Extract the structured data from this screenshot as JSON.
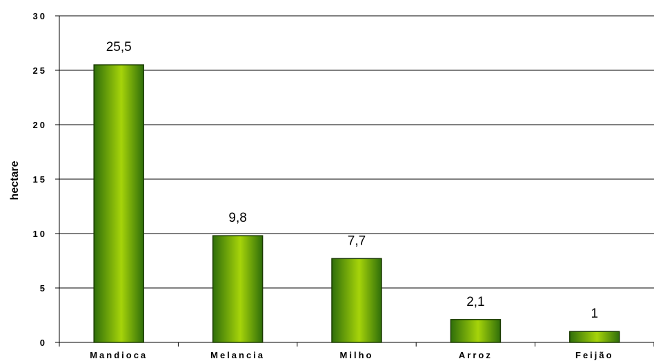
{
  "chart_data": {
    "type": "bar",
    "categories": [
      "Mandioca",
      "Melancia",
      "Milho",
      "Arroz",
      "Feijão"
    ],
    "values": [
      25.5,
      9.8,
      7.7,
      2.1,
      1
    ],
    "data_labels": [
      "25,5",
      "9,8",
      "7,7",
      "2,1",
      "1"
    ],
    "ylabel": "hectare",
    "ylim": [
      0,
      30
    ],
    "yticks": [
      0,
      5,
      10,
      15,
      20,
      25,
      30
    ],
    "ytick_labels": [
      "0",
      "5",
      "10",
      "15",
      "20",
      "25",
      "30"
    ],
    "grid": true,
    "legend": "none",
    "colors": {
      "bar_edge": "#1a3a00",
      "bar_dark": "#2f6e0a",
      "bar_light": "#a6d40a"
    }
  }
}
